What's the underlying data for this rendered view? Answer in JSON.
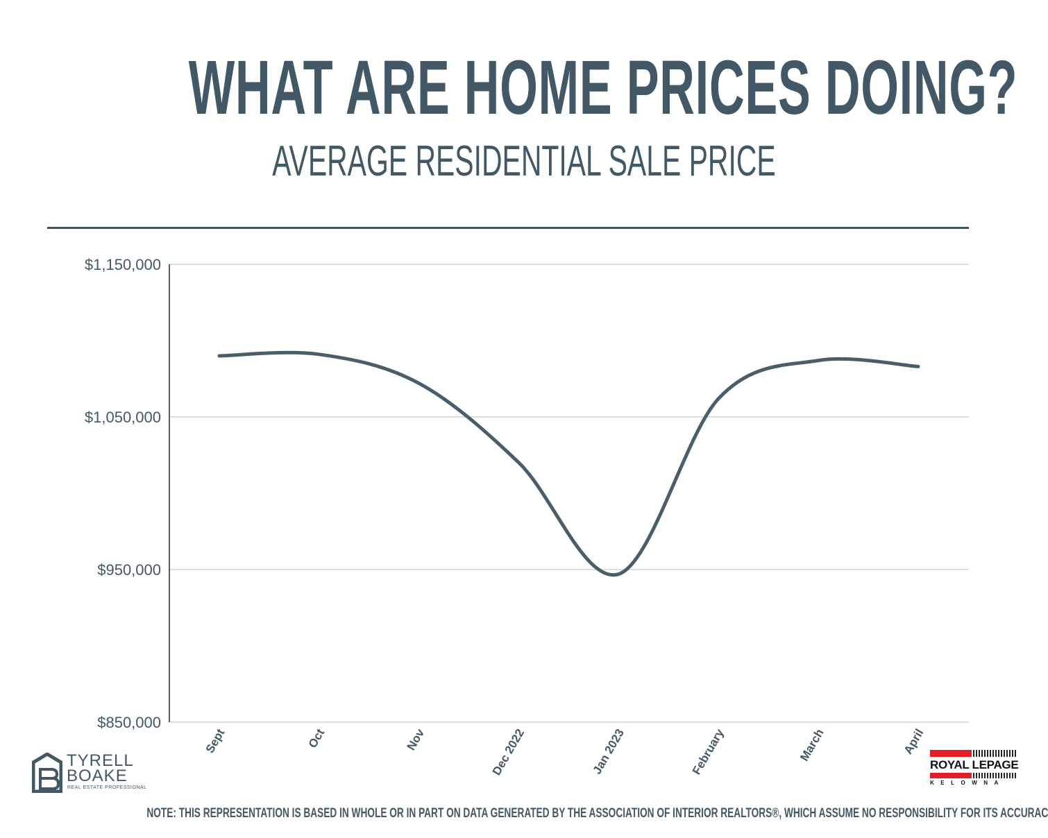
{
  "header": {
    "title": "WHAT ARE HOME PRICES DOING?",
    "subtitle": "AVERAGE RESIDENTIAL SALE PRICE"
  },
  "chart_data": {
    "type": "line",
    "categories": [
      "Sept",
      "Oct",
      "Nov",
      "Dec 2022",
      "Jan 2023",
      "February",
      "March",
      "April"
    ],
    "values": [
      1090000,
      1091000,
      1072000,
      1020000,
      947000,
      1062000,
      1087000,
      1083000
    ],
    "y_ticks": [
      "$1,150,000",
      "$1,050,000",
      "$950,000",
      "$850,000"
    ],
    "ylim": [
      850000,
      1150000
    ],
    "grid": true,
    "line_color": "#4a5d6a"
  },
  "branding": {
    "left_name_line1": "TYRELL",
    "left_name_line2": "BOAKE",
    "left_tagline": "REAL ESTATE PROFESSIONAL",
    "right_brand": "ROYAL LEPAGE",
    "right_city": "KELOWNA"
  },
  "footer": {
    "note": "NOTE:  THIS REPRESENTATION IS BASED IN WHOLE OR IN PART ON DATA GENERATED BY THE ASSOCIATION OF INTERIOR REALTORS®, WHICH ASSUME NO RESPONSIBILITY FOR ITS ACCURACY"
  },
  "colors": {
    "text": "#435866",
    "accent_red": "#e31e26"
  }
}
